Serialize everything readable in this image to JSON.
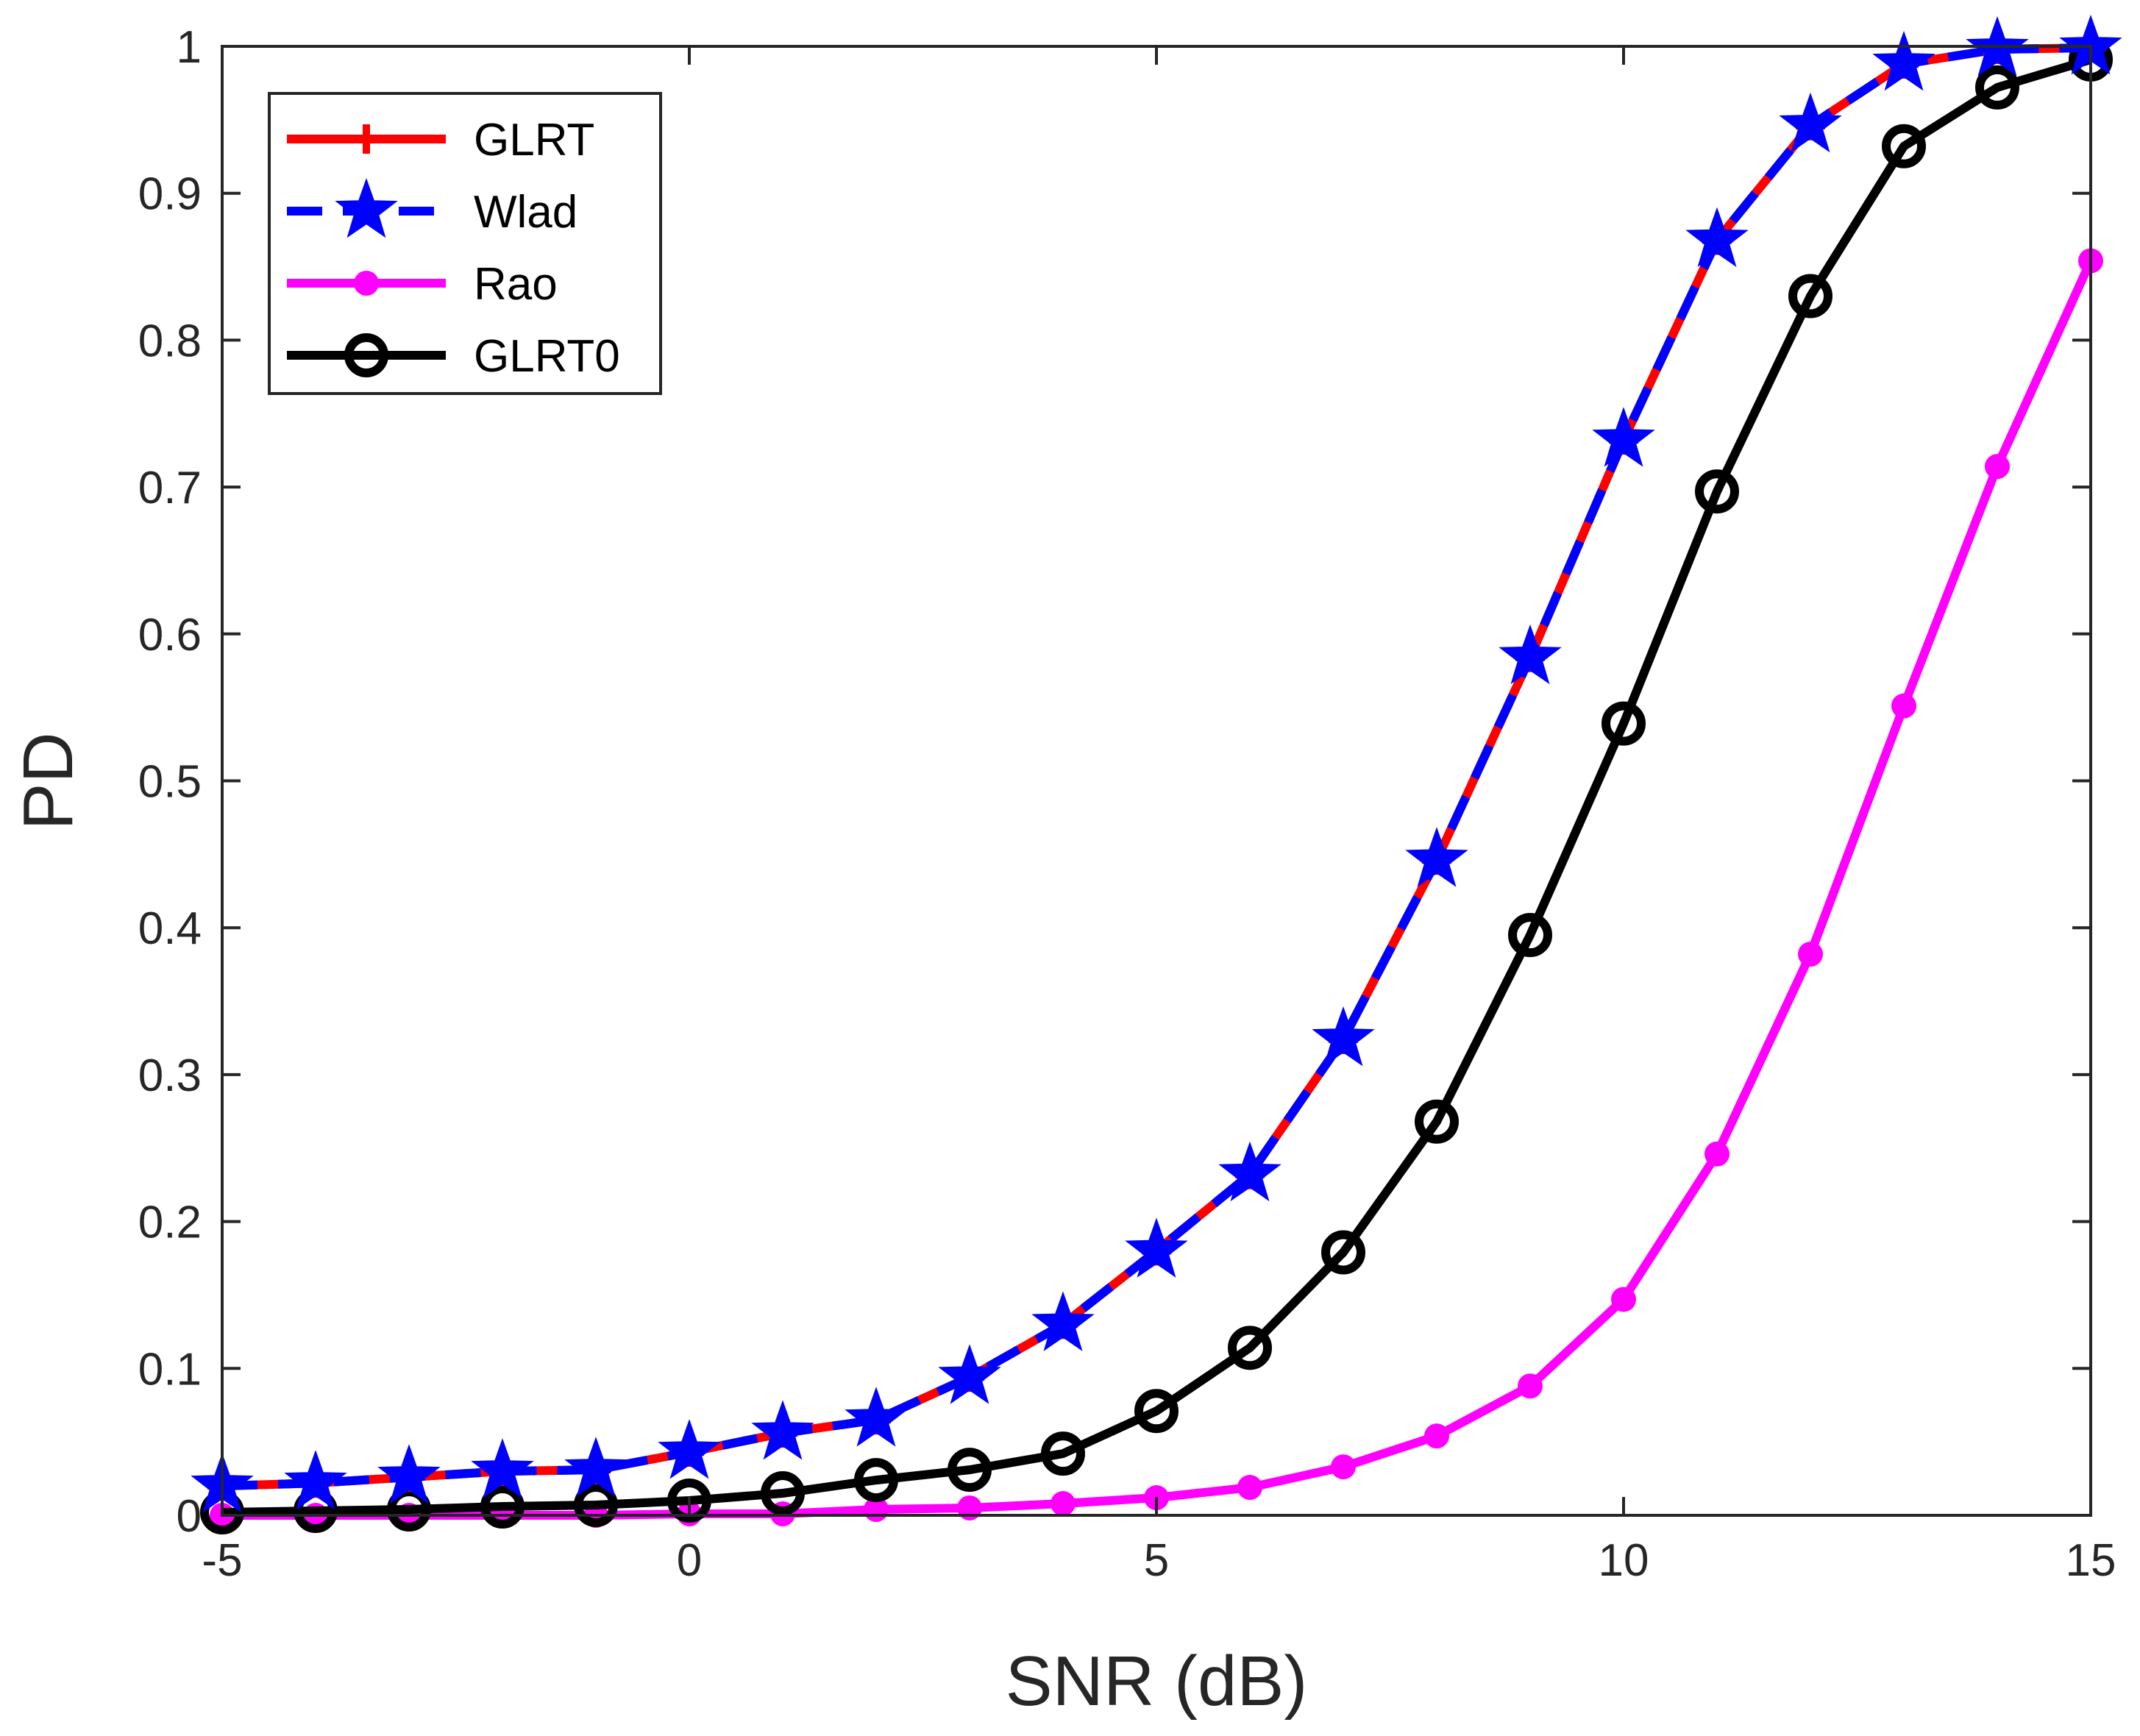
{
  "chart_data": {
    "type": "line",
    "title": "",
    "xlabel": "SNR (dB)",
    "ylabel": "PD",
    "xlim": [
      -5,
      15
    ],
    "ylim": [
      0,
      1
    ],
    "xticks": [
      -5,
      0,
      5,
      10,
      15
    ],
    "yticks": [
      0,
      0.1,
      0.2,
      0.3,
      0.4,
      0.5,
      0.6,
      0.7,
      0.8,
      0.9,
      1
    ],
    "xtick_labels": [
      "-5",
      "0",
      "5",
      "10",
      "15"
    ],
    "ytick_labels": [
      "0",
      "0.1",
      "0.2",
      "0.3",
      "0.4",
      "0.5",
      "0.6",
      "0.7",
      "0.8",
      "0.9",
      "1"
    ],
    "grid": false,
    "legend_position": "top-left",
    "x": [
      -5,
      -4,
      -3,
      -2,
      -1,
      0,
      1,
      2,
      3,
      4,
      5,
      6,
      7,
      8,
      9,
      10,
      11,
      12,
      13,
      14,
      15
    ],
    "series": [
      {
        "name": "GLRT",
        "color": "#ff0000",
        "line_style": "solid",
        "marker": "plus",
        "values": [
          0.02,
          0.022,
          0.026,
          0.03,
          0.031,
          0.043,
          0.056,
          0.065,
          0.094,
          0.13,
          0.18,
          0.232,
          0.324,
          0.446,
          0.584,
          0.732,
          0.868,
          0.946,
          0.988,
          0.998,
          0.999
        ]
      },
      {
        "name": "Wlad",
        "color": "#0000ff",
        "line_style": "dashed",
        "marker": "star",
        "values": [
          0.02,
          0.022,
          0.026,
          0.03,
          0.031,
          0.043,
          0.056,
          0.065,
          0.094,
          0.13,
          0.18,
          0.232,
          0.324,
          0.446,
          0.584,
          0.732,
          0.868,
          0.946,
          0.988,
          0.998,
          0.999
        ]
      },
      {
        "name": "Rao",
        "color": "#ff00ff",
        "line_style": "solid",
        "marker": "dot",
        "values": [
          0.0,
          0.0,
          0.0,
          0.0,
          0.0,
          0.001,
          0.001,
          0.004,
          0.005,
          0.008,
          0.012,
          0.019,
          0.033,
          0.054,
          0.088,
          0.147,
          0.246,
          0.382,
          0.551,
          0.714,
          0.854
        ]
      },
      {
        "name": "GLRT0",
        "color": "#000000",
        "line_style": "solid",
        "marker": "circle",
        "values": [
          0.002,
          0.003,
          0.004,
          0.006,
          0.007,
          0.01,
          0.015,
          0.024,
          0.031,
          0.042,
          0.071,
          0.114,
          0.179,
          0.268,
          0.395,
          0.539,
          0.697,
          0.83,
          0.932,
          0.972,
          0.991
        ]
      }
    ]
  }
}
